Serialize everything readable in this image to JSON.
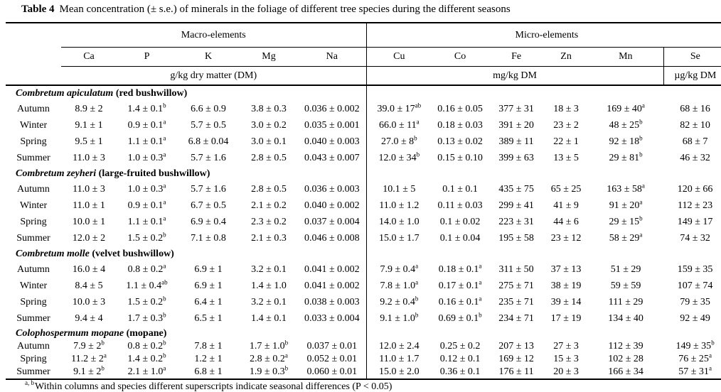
{
  "title": {
    "label": "Table 4",
    "text": "Mean concentration (± s.e.) of minerals in the foliage of different tree species during the different seasons"
  },
  "header": {
    "macro_group": "Macro-elements",
    "micro_group": "Micro-elements",
    "columns_macro": [
      "Ca",
      "P",
      "K",
      "Mg",
      "Na"
    ],
    "columns_micro": [
      "Cu",
      "Co",
      "Fe",
      "Zn",
      "Mn"
    ],
    "column_se": "Se",
    "unit_macro": "g/kg dry matter (DM)",
    "unit_micro": "mg/kg DM",
    "unit_se": "µg/kg DM"
  },
  "species": [
    {
      "name": "Combretum apiculatum",
      "common": "(red bushwillow)",
      "rows": [
        {
          "season": "Autumn",
          "values": [
            "8.9 ± 2",
            "1.4 ± 0.1^b",
            "6.6 ± 0.9",
            "3.8 ± 0.3",
            "0.036 ± 0.002",
            "39.0 ± 17^ab",
            "0.16 ± 0.05",
            "377 ± 31",
            "18 ± 3",
            "169 ± 40^a",
            "68 ± 16"
          ]
        },
        {
          "season": "Winter",
          "values": [
            "9.1 ± 1",
            "0.9 ± 0.1^a",
            "5.7 ± 0.5",
            "3.0 ± 0.2",
            "0.035 ± 0.001",
            "66.0 ± 11^a",
            "0.18 ± 0.03",
            "391 ± 20",
            "23 ± 2",
            "48 ± 25^b",
            "82 ± 10"
          ]
        },
        {
          "season": "Spring",
          "values": [
            "9.5 ± 1",
            "1.1 ± 0.1^a",
            "6.8 ± 0.04",
            "3.0 ± 0.1",
            "0.040 ± 0.003",
            "27.0 ± 8^b",
            "0.13 ± 0.02",
            "389 ± 11",
            "22 ± 1",
            "92 ± 18^b",
            "68 ± 7"
          ]
        },
        {
          "season": "Summer",
          "values": [
            "11.0 ± 3",
            "1.0 ± 0.3^a",
            "5.7 ± 1.6",
            "2.8 ± 0.5",
            "0.043 ± 0.007",
            "12.0 ± 34^b",
            "0.15 ± 0.10",
            "399 ± 63",
            "13 ± 5",
            "29 ± 81^b",
            "46 ± 32"
          ]
        }
      ]
    },
    {
      "name": "Combretum zeyheri",
      "common": "(large-fruited bushwillow)",
      "rows": [
        {
          "season": "Autumn",
          "values": [
            "11.0 ± 3",
            "1.0 ± 0.3^a",
            "5.7 ± 1.6",
            "2.8 ± 0.5",
            "0.036 ± 0.003",
            "10.1 ± 5",
            "0.1 ± 0.1",
            "435 ± 75",
            "65 ± 25",
            "163 ± 58^a",
            "120 ± 66"
          ]
        },
        {
          "season": "Winter",
          "values": [
            "11.0 ± 1",
            "0.9 ± 0.1^a",
            "6.7 ± 0.5",
            "2.1 ± 0.2",
            "0.040 ± 0.002",
            "11.0 ± 1.2",
            "0.11 ± 0.03",
            "299 ± 41",
            "41 ± 9",
            "91 ± 20^a",
            "112 ± 23"
          ]
        },
        {
          "season": "Spring",
          "values": [
            "10.0 ± 1",
            "1.1 ± 0.1^a",
            "6.9 ± 0.4",
            "2.3 ± 0.2",
            "0.037 ± 0.004",
            "14.0 ± 1.0",
            "0.1 ± 0.02",
            "223 ± 31",
            "44 ± 6",
            "29 ± 15^b",
            "149 ± 17"
          ]
        },
        {
          "season": "Summer",
          "values": [
            "12.0 ± 2",
            "1.5 ± 0.2^b",
            "7.1 ± 0.8",
            "2.1 ± 0.3",
            "0.046 ± 0.008",
            "15.0 ± 1.7",
            "0.1 ± 0.04",
            "195 ± 58",
            "23 ± 12",
            "58 ± 29^a",
            "74 ± 32"
          ]
        }
      ]
    },
    {
      "name": "Combretum molle",
      "common": "(velvet bushwillow)",
      "rows": [
        {
          "season": "Autumn",
          "values": [
            "16.0 ± 4",
            "0.8 ± 0.2^a",
            "6.9 ± 1",
            "3.2 ± 0.1",
            "0.041 ± 0.002",
            "7.9 ± 0.4^a",
            "0.18 ± 0.1^a",
            "311 ± 50",
            "37 ± 13",
            "51 ± 29",
            "159 ± 35"
          ]
        },
        {
          "season": "Winter",
          "values": [
            "8.4 ± 5",
            "1.1 ± 0.4^ab",
            "6.9 ± 1",
            "1.4 ± 1.0",
            "0.041 ± 0.002",
            "7.8 ± 1.0^a",
            "0.17 ± 0.1^a",
            "275 ± 71",
            "38 ± 19",
            "59 ± 59",
            "107 ± 74"
          ]
        },
        {
          "season": "Spring",
          "values": [
            "10.0 ± 3",
            "1.5 ± 0.2^b",
            "6.4 ± 1",
            "3.2 ± 0.1",
            "0.038 ± 0.003",
            "9.2 ± 0.4^b",
            "0.16 ± 0.1^a",
            "235 ± 71",
            "39 ± 14",
            "111 ± 29",
            "79 ± 35"
          ]
        },
        {
          "season": "Summer",
          "values": [
            "9.4 ± 4",
            "1.7 ± 0.3^b",
            "6.5 ± 1",
            "1.4 ± 0.1",
            "0.033 ± 0.004",
            "9.1 ± 1.0^b",
            "0.69 ± 0.1^b",
            "234 ± 71",
            "17 ± 19",
            "134 ± 40",
            "92 ± 49"
          ]
        }
      ]
    },
    {
      "name": "Colophospermum mopane",
      "common": "(mopane)",
      "rows": [
        {
          "season": "Autumn",
          "values": [
            "7.9 ± 2^b",
            "0.8 ± 0.2^b",
            "7.8 ± 1",
            "1.7 ± 1.0^b",
            "0.037 ± 0.01",
            "12.0 ± 2.4",
            "0.25 ± 0.2",
            "207 ± 13",
            "27 ± 3",
            "112 ± 39",
            "149 ± 35^b"
          ]
        },
        {
          "season": "Spring",
          "values": [
            "11.2 ± 2^a",
            "1.4 ± 0.2^b",
            "1.2 ± 1",
            "2.8 ± 0.2^a",
            "0.052 ± 0.01",
            "11.0 ± 1.7",
            "0.12 ± 0.1",
            "169 ± 12",
            "15 ± 3",
            "102 ± 28",
            "76 ± 25^a"
          ]
        },
        {
          "season": "Summer",
          "values": [
            "9.1 ± 2^b",
            "2.1 ± 1.0^a",
            "6.8 ± 1",
            "1.9 ± 0.3^b",
            "0.060 ± 0.01",
            "15.0 ± 2.0",
            "0.36 ± 0.1",
            "176 ± 11",
            "20 ± 3",
            "166 ± 34",
            "57 ± 31^a"
          ]
        }
      ]
    }
  ],
  "footnote": {
    "sup": "a, b",
    "text": "Within columns and species different superscripts indicate seasonal differences (P < 0.05)"
  }
}
